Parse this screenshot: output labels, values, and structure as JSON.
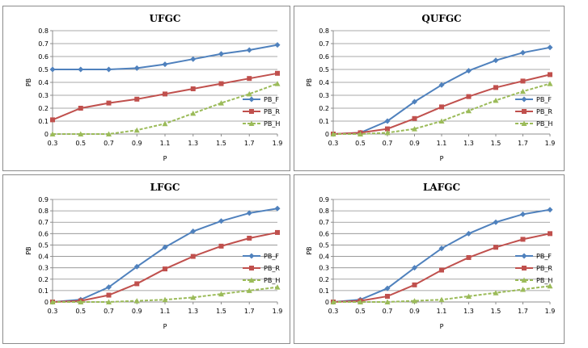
{
  "chart_data": [
    {
      "type": "line",
      "title": "UFGC",
      "xlabel": "P",
      "ylabel": "PB",
      "categories": [
        "0.3",
        "0.5",
        "0.7",
        "0.9",
        "1.1",
        "1.3",
        "1.5",
        "1.7",
        "1.9"
      ],
      "ylim": [
        0,
        0.8
      ],
      "yticks": [
        "0",
        "0.1",
        "0.2",
        "0.3",
        "0.4",
        "0.5",
        "0.6",
        "0.7",
        "0.8"
      ],
      "grid": true,
      "legend_position": "right",
      "series": [
        {
          "name": "PB_F",
          "color": "#4f81bd",
          "marker": "diamond",
          "dash": "solid",
          "values": [
            0.5,
            0.5,
            0.5,
            0.51,
            0.54,
            0.58,
            0.62,
            0.65,
            0.69
          ]
        },
        {
          "name": "PB_R",
          "color": "#c0504d",
          "marker": "square",
          "dash": "solid",
          "values": [
            0.11,
            0.2,
            0.24,
            0.27,
            0.31,
            0.35,
            0.39,
            0.43,
            0.47
          ]
        },
        {
          "name": "PB_H",
          "color": "#9bbb59",
          "marker": "triangle",
          "dash": "dashed",
          "values": [
            0.0,
            0.0,
            0.0,
            0.03,
            0.08,
            0.16,
            0.24,
            0.31,
            0.39
          ]
        }
      ]
    },
    {
      "type": "line",
      "title": "QUFGC",
      "xlabel": "P",
      "ylabel": "PB",
      "categories": [
        "0.3",
        "0.5",
        "0.7",
        "0.9",
        "1.1",
        "1.3",
        "1.5",
        "1.7",
        "1.9"
      ],
      "ylim": [
        0,
        0.8
      ],
      "yticks": [
        "0",
        "0.1",
        "0.2",
        "0.3",
        "0.4",
        "0.5",
        "0.6",
        "0.7",
        "0.8"
      ],
      "grid": true,
      "legend_position": "right",
      "series": [
        {
          "name": "PB_F",
          "color": "#4f81bd",
          "marker": "diamond",
          "dash": "solid",
          "values": [
            0.0,
            0.01,
            0.1,
            0.25,
            0.38,
            0.49,
            0.57,
            0.63,
            0.67
          ]
        },
        {
          "name": "PB_R",
          "color": "#c0504d",
          "marker": "square",
          "dash": "solid",
          "values": [
            0.0,
            0.01,
            0.04,
            0.12,
            0.21,
            0.29,
            0.36,
            0.41,
            0.46
          ]
        },
        {
          "name": "PB_H",
          "color": "#9bbb59",
          "marker": "triangle",
          "dash": "dashed",
          "values": [
            0.0,
            0.0,
            0.01,
            0.04,
            0.1,
            0.18,
            0.26,
            0.33,
            0.39
          ]
        }
      ]
    },
    {
      "type": "line",
      "title": "LFGC",
      "xlabel": "P",
      "ylabel": "PB",
      "categories": [
        "0.3",
        "0.5",
        "0.7",
        "0.9",
        "1.1",
        "1.3",
        "1.5",
        "1.7",
        "1.9"
      ],
      "ylim": [
        0,
        0.9
      ],
      "yticks": [
        "0",
        "0.1",
        "0.2",
        "0.3",
        "0.4",
        "0.5",
        "0.6",
        "0.7",
        "0.8",
        "0.9"
      ],
      "grid": true,
      "legend_position": "right",
      "series": [
        {
          "name": "PB_F",
          "color": "#4f81bd",
          "marker": "diamond",
          "dash": "solid",
          "values": [
            0.0,
            0.02,
            0.13,
            0.31,
            0.48,
            0.62,
            0.71,
            0.78,
            0.82
          ]
        },
        {
          "name": "PB_R",
          "color": "#c0504d",
          "marker": "square",
          "dash": "solid",
          "values": [
            0.0,
            0.01,
            0.06,
            0.16,
            0.29,
            0.4,
            0.49,
            0.56,
            0.61
          ]
        },
        {
          "name": "PB_H",
          "color": "#9bbb59",
          "marker": "triangle",
          "dash": "dashed",
          "values": [
            0.0,
            0.0,
            0.0,
            0.01,
            0.02,
            0.04,
            0.07,
            0.1,
            0.13
          ]
        }
      ]
    },
    {
      "type": "line",
      "title": "LAFGC",
      "xlabel": "P",
      "ylabel": "PB",
      "categories": [
        "0.3",
        "0.5",
        "0.7",
        "0.9",
        "1.1",
        "1.3",
        "1.5",
        "1.7",
        "1.9"
      ],
      "ylim": [
        0,
        0.9
      ],
      "yticks": [
        "0",
        "0.1",
        "0.2",
        "0.3",
        "0.4",
        "0.5",
        "0.6",
        "0.7",
        "0.8",
        "0.9"
      ],
      "grid": true,
      "legend_position": "right",
      "series": [
        {
          "name": "PB_F",
          "color": "#4f81bd",
          "marker": "diamond",
          "dash": "solid",
          "values": [
            0.0,
            0.02,
            0.12,
            0.3,
            0.47,
            0.6,
            0.7,
            0.77,
            0.81
          ]
        },
        {
          "name": "PB_R",
          "color": "#c0504d",
          "marker": "square",
          "dash": "solid",
          "values": [
            0.0,
            0.01,
            0.05,
            0.15,
            0.28,
            0.39,
            0.48,
            0.55,
            0.6
          ]
        },
        {
          "name": "PB_H",
          "color": "#9bbb59",
          "marker": "triangle",
          "dash": "dashed",
          "values": [
            0.0,
            0.0,
            0.0,
            0.01,
            0.02,
            0.05,
            0.08,
            0.11,
            0.14
          ]
        }
      ]
    }
  ]
}
